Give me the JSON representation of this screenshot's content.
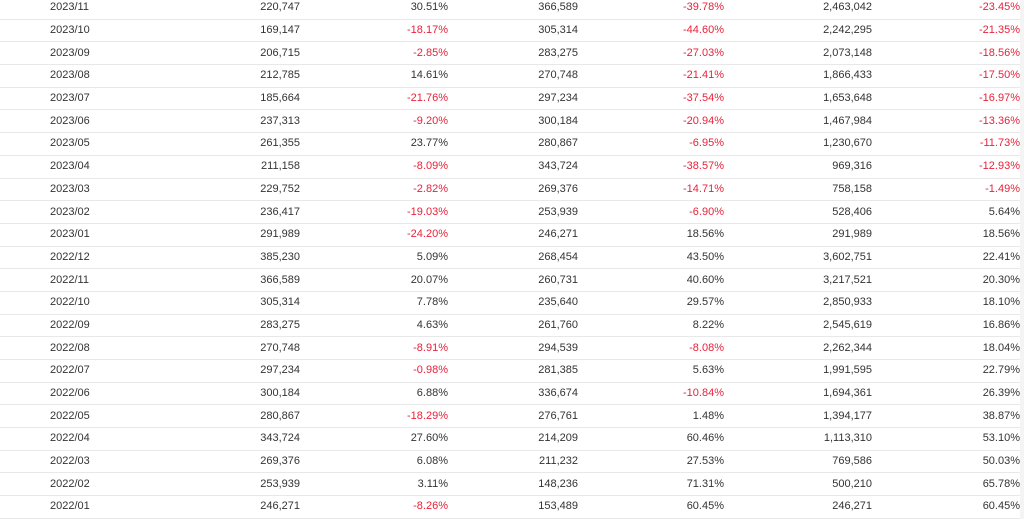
{
  "colors": {
    "negative": "#e8223a",
    "text": "#333333",
    "row_border": "#e8e8e8"
  },
  "rows": [
    {
      "month": "2023/11",
      "v1": "220,747",
      "p1": "30.51%",
      "v2": "366,589",
      "p2": "-39.78%",
      "v3": "2,463,042",
      "p3": "-23.45%"
    },
    {
      "month": "2023/10",
      "v1": "169,147",
      "p1": "-18.17%",
      "v2": "305,314",
      "p2": "-44.60%",
      "v3": "2,242,295",
      "p3": "-21.35%"
    },
    {
      "month": "2023/09",
      "v1": "206,715",
      "p1": "-2.85%",
      "v2": "283,275",
      "p2": "-27.03%",
      "v3": "2,073,148",
      "p3": "-18.56%"
    },
    {
      "month": "2023/08",
      "v1": "212,785",
      "p1": "14.61%",
      "v2": "270,748",
      "p2": "-21.41%",
      "v3": "1,866,433",
      "p3": "-17.50%"
    },
    {
      "month": "2023/07",
      "v1": "185,664",
      "p1": "-21.76%",
      "v2": "297,234",
      "p2": "-37.54%",
      "v3": "1,653,648",
      "p3": "-16.97%"
    },
    {
      "month": "2023/06",
      "v1": "237,313",
      "p1": "-9.20%",
      "v2": "300,184",
      "p2": "-20.94%",
      "v3": "1,467,984",
      "p3": "-13.36%"
    },
    {
      "month": "2023/05",
      "v1": "261,355",
      "p1": "23.77%",
      "v2": "280,867",
      "p2": "-6.95%",
      "v3": "1,230,670",
      "p3": "-11.73%"
    },
    {
      "month": "2023/04",
      "v1": "211,158",
      "p1": "-8.09%",
      "v2": "343,724",
      "p2": "-38.57%",
      "v3": "969,316",
      "p3": "-12.93%"
    },
    {
      "month": "2023/03",
      "v1": "229,752",
      "p1": "-2.82%",
      "v2": "269,376",
      "p2": "-14.71%",
      "v3": "758,158",
      "p3": "-1.49%"
    },
    {
      "month": "2023/02",
      "v1": "236,417",
      "p1": "-19.03%",
      "v2": "253,939",
      "p2": "-6.90%",
      "v3": "528,406",
      "p3": "5.64%"
    },
    {
      "month": "2023/01",
      "v1": "291,989",
      "p1": "-24.20%",
      "v2": "246,271",
      "p2": "18.56%",
      "v3": "291,989",
      "p3": "18.56%"
    },
    {
      "month": "2022/12",
      "v1": "385,230",
      "p1": "5.09%",
      "v2": "268,454",
      "p2": "43.50%",
      "v3": "3,602,751",
      "p3": "22.41%"
    },
    {
      "month": "2022/11",
      "v1": "366,589",
      "p1": "20.07%",
      "v2": "260,731",
      "p2": "40.60%",
      "v3": "3,217,521",
      "p3": "20.30%"
    },
    {
      "month": "2022/10",
      "v1": "305,314",
      "p1": "7.78%",
      "v2": "235,640",
      "p2": "29.57%",
      "v3": "2,850,933",
      "p3": "18.10%"
    },
    {
      "month": "2022/09",
      "v1": "283,275",
      "p1": "4.63%",
      "v2": "261,760",
      "p2": "8.22%",
      "v3": "2,545,619",
      "p3": "16.86%"
    },
    {
      "month": "2022/08",
      "v1": "270,748",
      "p1": "-8.91%",
      "v2": "294,539",
      "p2": "-8.08%",
      "v3": "2,262,344",
      "p3": "18.04%"
    },
    {
      "month": "2022/07",
      "v1": "297,234",
      "p1": "-0.98%",
      "v2": "281,385",
      "p2": "5.63%",
      "v3": "1,991,595",
      "p3": "22.79%"
    },
    {
      "month": "2022/06",
      "v1": "300,184",
      "p1": "6.88%",
      "v2": "336,674",
      "p2": "-10.84%",
      "v3": "1,694,361",
      "p3": "26.39%"
    },
    {
      "month": "2022/05",
      "v1": "280,867",
      "p1": "-18.29%",
      "v2": "276,761",
      "p2": "1.48%",
      "v3": "1,394,177",
      "p3": "38.87%"
    },
    {
      "month": "2022/04",
      "v1": "343,724",
      "p1": "27.60%",
      "v2": "214,209",
      "p2": "60.46%",
      "v3": "1,113,310",
      "p3": "53.10%"
    },
    {
      "month": "2022/03",
      "v1": "269,376",
      "p1": "6.08%",
      "v2": "211,232",
      "p2": "27.53%",
      "v3": "769,586",
      "p3": "50.03%"
    },
    {
      "month": "2022/02",
      "v1": "253,939",
      "p1": "3.11%",
      "v2": "148,236",
      "p2": "71.31%",
      "v3": "500,210",
      "p3": "65.78%"
    },
    {
      "month": "2022/01",
      "v1": "246,271",
      "p1": "-8.26%",
      "v2": "153,489",
      "p2": "60.45%",
      "v3": "246,271",
      "p3": "60.45%"
    }
  ]
}
